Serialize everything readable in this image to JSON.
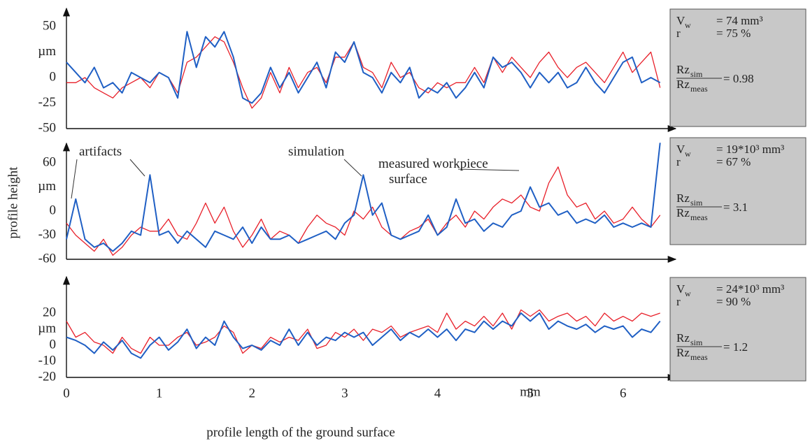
{
  "chart_data": [
    {
      "type": "line",
      "xlim": [
        0,
        6.5
      ],
      "ylim": [
        -50,
        50
      ],
      "yticks": [
        50,
        0,
        -25,
        -50
      ],
      "y_unit": "µm",
      "x": [
        0,
        0.1,
        0.2,
        0.3,
        0.4,
        0.5,
        0.6,
        0.7,
        0.8,
        0.9,
        1,
        1.1,
        1.2,
        1.3,
        1.4,
        1.5,
        1.6,
        1.7,
        1.8,
        1.9,
        2,
        2.1,
        2.2,
        2.3,
        2.4,
        2.5,
        2.6,
        2.7,
        2.8,
        2.9,
        3,
        3.1,
        3.2,
        3.3,
        3.4,
        3.5,
        3.6,
        3.7,
        3.8,
        3.9,
        4,
        4.1,
        4.2,
        4.3,
        4.4,
        4.5,
        4.6,
        4.7,
        4.8,
        4.9,
        5,
        5.1,
        5.2,
        5.3,
        5.4,
        5.5,
        5.6,
        5.7,
        5.8,
        5.9,
        6,
        6.1,
        6.2,
        6.3,
        6.4
      ],
      "series": [
        {
          "color": "#e8202a",
          "values": [
            -5,
            -5,
            0,
            -10,
            -15,
            -20,
            -10,
            -5,
            0,
            -10,
            5,
            0,
            -15,
            15,
            20,
            30,
            40,
            35,
            15,
            -10,
            -30,
            -20,
            5,
            -15,
            10,
            -10,
            5,
            10,
            -5,
            20,
            20,
            35,
            10,
            5,
            -10,
            15,
            0,
            5,
            -10,
            -15,
            -5,
            -10,
            -5,
            -5,
            10,
            -5,
            20,
            5,
            20,
            10,
            0,
            15,
            25,
            10,
            0,
            10,
            15,
            5,
            -5,
            10,
            25,
            5,
            15,
            25,
            -10
          ]
        },
        {
          "color": "#1f5fc4",
          "values": [
            15,
            5,
            -5,
            10,
            -10,
            -5,
            -15,
            5,
            0,
            -5,
            5,
            0,
            -20,
            45,
            10,
            40,
            30,
            45,
            20,
            -20,
            -25,
            -15,
            10,
            -10,
            5,
            -15,
            0,
            15,
            -10,
            25,
            15,
            35,
            5,
            0,
            -15,
            5,
            -5,
            10,
            -20,
            -10,
            -15,
            -5,
            -20,
            -10,
            5,
            -10,
            20,
            10,
            15,
            5,
            -10,
            5,
            -5,
            5,
            -10,
            -5,
            10,
            -5,
            -15,
            0,
            15,
            20,
            -5,
            0,
            -5
          ]
        }
      ],
      "info": {
        "lines": [
          {
            "label": "V",
            "sub": "w",
            "value": "= 74 mm³"
          },
          {
            "label": "r",
            "value": "= 75 %"
          }
        ],
        "ratio": {
          "num": "Rz",
          "num_sub": "sim",
          "den": "Rz",
          "den_sub": "meas",
          "value": "= 0.98"
        }
      }
    },
    {
      "type": "line",
      "xlim": [
        0,
        6.5
      ],
      "ylim": [
        -60,
        90
      ],
      "yticks": [
        60,
        0,
        -30,
        -60
      ],
      "y_unit": "µm",
      "y_label": "profile height",
      "annotations": [
        "artifacts"
      ],
      "x": [
        0,
        0.1,
        0.2,
        0.3,
        0.4,
        0.5,
        0.6,
        0.7,
        0.8,
        0.9,
        1,
        1.1,
        1.2,
        1.3,
        1.4,
        1.5,
        1.6,
        1.7,
        1.8,
        1.9,
        2,
        2.1,
        2.2,
        2.3,
        2.4,
        2.5,
        2.6,
        2.7,
        2.8,
        2.9,
        3,
        3.1,
        3.2,
        3.3,
        3.4,
        3.5,
        3.6,
        3.7,
        3.8,
        3.9,
        4,
        4.1,
        4.2,
        4.3,
        4.4,
        4.5,
        4.6,
        4.7,
        4.8,
        4.9,
        5,
        5.1,
        5.2,
        5.3,
        5.4,
        5.5,
        5.6,
        5.7,
        5.8,
        5.9,
        6,
        6.1,
        6.2,
        6.3,
        6.4
      ],
      "series": [
        {
          "name": "measured workpiece surface",
          "color": "#e8202a",
          "values": [
            -15,
            -30,
            -40,
            -50,
            -35,
            -55,
            -45,
            -30,
            -20,
            -25,
            -25,
            -10,
            -30,
            -35,
            -15,
            10,
            -15,
            5,
            -25,
            -45,
            -30,
            -10,
            -35,
            -25,
            -30,
            -40,
            -20,
            -5,
            -15,
            -20,
            -30,
            0,
            -10,
            5,
            -20,
            -30,
            -35,
            -25,
            -20,
            -10,
            -30,
            -15,
            -5,
            -20,
            0,
            -10,
            5,
            15,
            10,
            20,
            5,
            0,
            35,
            55,
            20,
            5,
            10,
            -10,
            0,
            -15,
            -10,
            5,
            -10,
            -20,
            -5
          ]
        },
        {
          "name": "simulation",
          "color": "#1f5fc4",
          "values": [
            -35,
            15,
            -35,
            -45,
            -40,
            -50,
            -40,
            -25,
            -30,
            45,
            -30,
            -25,
            -40,
            -25,
            -35,
            -45,
            -25,
            -30,
            -35,
            -20,
            -40,
            -20,
            -35,
            -35,
            -30,
            -40,
            -35,
            -30,
            -25,
            -35,
            -15,
            -5,
            45,
            -5,
            10,
            -30,
            -35,
            -30,
            -25,
            -5,
            -30,
            -20,
            15,
            -15,
            -10,
            -25,
            -15,
            -20,
            -5,
            0,
            30,
            5,
            10,
            -5,
            0,
            -15,
            -10,
            -15,
            -5,
            -20,
            -15,
            -20,
            -15,
            -20,
            85
          ]
        }
      ],
      "info": {
        "lines": [
          {
            "label": "V",
            "sub": "w",
            "value": "= 19*10³ mm³"
          },
          {
            "label": "r",
            "value": "= 67 %"
          }
        ],
        "ratio": {
          "num": "Rz",
          "num_sub": "sim",
          "den": "Rz",
          "den_sub": "meas",
          "value": "= 3.1"
        }
      }
    },
    {
      "type": "line",
      "xlim": [
        0,
        6.5
      ],
      "ylim": [
        -20,
        40
      ],
      "yticks": [
        20,
        0,
        -10,
        -20
      ],
      "y_unit": "µm",
      "xticks": [
        0,
        1,
        2,
        3,
        4,
        5,
        6
      ],
      "x_unit": "mm",
      "x_label": "profile length of the ground surface",
      "x": [
        0,
        0.1,
        0.2,
        0.3,
        0.4,
        0.5,
        0.6,
        0.7,
        0.8,
        0.9,
        1,
        1.1,
        1.2,
        1.3,
        1.4,
        1.5,
        1.6,
        1.7,
        1.8,
        1.9,
        2,
        2.1,
        2.2,
        2.3,
        2.4,
        2.5,
        2.6,
        2.7,
        2.8,
        2.9,
        3,
        3.1,
        3.2,
        3.3,
        3.4,
        3.5,
        3.6,
        3.7,
        3.8,
        3.9,
        4,
        4.1,
        4.2,
        4.3,
        4.4,
        4.5,
        4.6,
        4.7,
        4.8,
        4.9,
        5,
        5.1,
        5.2,
        5.3,
        5.4,
        5.5,
        5.6,
        5.7,
        5.8,
        5.9,
        6,
        6.1,
        6.2,
        6.3,
        6.4
      ],
      "series": [
        {
          "color": "#e8202a",
          "values": [
            15,
            5,
            8,
            2,
            0,
            -5,
            5,
            -2,
            -5,
            5,
            0,
            0,
            5,
            8,
            0,
            2,
            5,
            12,
            8,
            -5,
            0,
            -2,
            5,
            2,
            5,
            3,
            10,
            -2,
            0,
            8,
            5,
            10,
            3,
            10,
            8,
            12,
            5,
            8,
            10,
            12,
            8,
            20,
            10,
            15,
            12,
            18,
            12,
            20,
            10,
            22,
            18,
            22,
            15,
            18,
            20,
            15,
            18,
            12,
            20,
            15,
            18,
            15,
            20,
            18,
            20
          ]
        },
        {
          "color": "#1f5fc4",
          "values": [
            5,
            3,
            0,
            -5,
            2,
            -3,
            3,
            -5,
            -8,
            0,
            5,
            -3,
            2,
            10,
            -2,
            5,
            0,
            15,
            5,
            -2,
            0,
            -3,
            3,
            0,
            10,
            0,
            8,
            0,
            5,
            3,
            8,
            5,
            8,
            0,
            5,
            10,
            3,
            8,
            5,
            10,
            5,
            10,
            3,
            10,
            8,
            15,
            10,
            15,
            12,
            20,
            15,
            20,
            10,
            15,
            12,
            10,
            13,
            8,
            12,
            10,
            12,
            5,
            10,
            8,
            15
          ]
        }
      ],
      "info": {
        "lines": [
          {
            "label": "V",
            "sub": "w",
            "value": "= 24*10³ mm³"
          },
          {
            "label": "r",
            "value": "= 90 %"
          }
        ],
        "ratio": {
          "num": "Rz",
          "num_sub": "sim",
          "den": "Rz",
          "den_sub": "meas",
          "value": "= 1.2"
        }
      }
    }
  ]
}
